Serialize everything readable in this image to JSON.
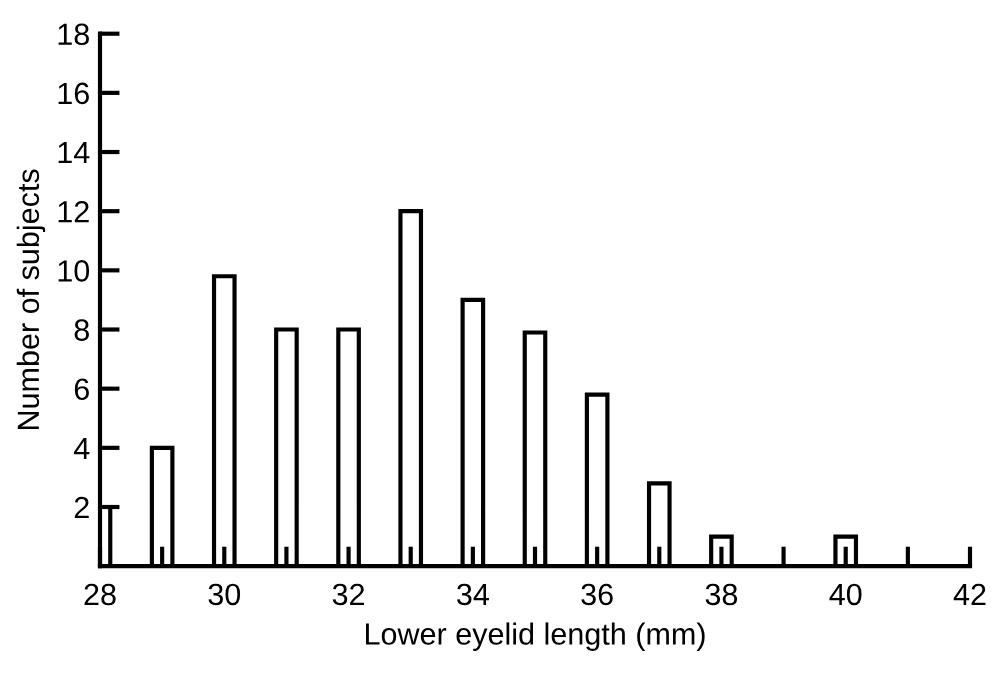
{
  "chart_data": {
    "type": "bar",
    "xlabel": "Lower eyelid length (mm)",
    "ylabel": "Number of subjects",
    "x": [
      28,
      29,
      30,
      31,
      32,
      33,
      34,
      35,
      36,
      37,
      38,
      40
    ],
    "values": [
      2,
      4,
      9.8,
      8,
      8,
      12,
      9,
      7.9,
      5.8,
      2.8,
      1,
      1
    ],
    "color": "#ffffff",
    "xlim": [
      28,
      42
    ],
    "xticks": [
      28,
      {
        "value": 29,
        "label": null
      },
      30,
      {
        "value": 31,
        "label": null
      },
      32,
      {
        "value": 33,
        "label": null
      },
      34,
      {
        "value": 35,
        "label": null
      },
      36,
      {
        "value": 37,
        "label": null
      },
      38,
      {
        "value": 39,
        "label": null
      },
      40,
      {
        "value": 41,
        "label": null
      },
      42
    ],
    "ylim": [
      0,
      18
    ],
    "yticks": [
      2,
      4,
      6,
      8,
      10,
      12,
      14,
      16,
      18
    ],
    "grid": false,
    "legend": false
  }
}
